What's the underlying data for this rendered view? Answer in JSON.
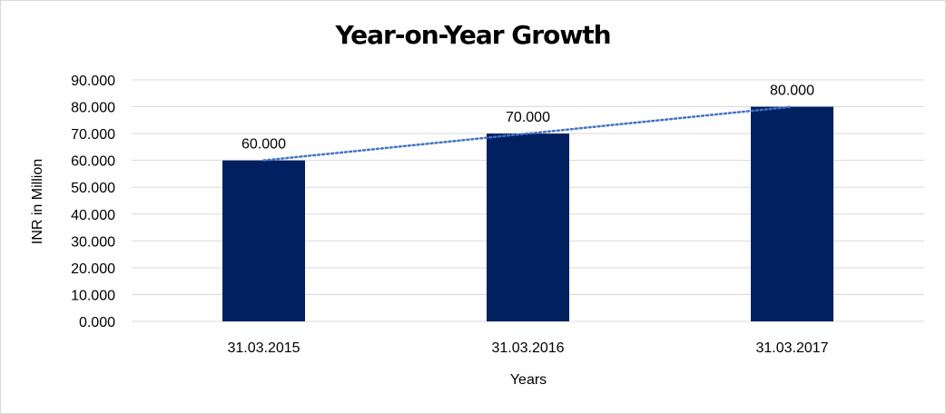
{
  "chart_data": {
    "type": "bar",
    "title": "Year-on-Year Growth",
    "xlabel": "Years",
    "ylabel": "INR in Million",
    "categories": [
      "31.03.2015",
      "31.03.2016",
      "31.03.2017"
    ],
    "values": [
      60,
      70,
      80
    ],
    "data_labels": [
      "60.000",
      "70.000",
      "80.000"
    ],
    "ylim": [
      0,
      90
    ],
    "yticks": [
      0,
      10,
      20,
      30,
      40,
      50,
      60,
      70,
      80,
      90
    ],
    "ytick_labels": [
      "0.000",
      "10.000",
      "20.000",
      "30.000",
      "40.000",
      "50.000",
      "60.000",
      "70.000",
      "80.000",
      "90.000"
    ],
    "grid": true,
    "trendline": "linear, dotted",
    "colors": {
      "bar": "#002060",
      "trendline": "#4472c4",
      "grid": "#d9d9d9"
    }
  }
}
